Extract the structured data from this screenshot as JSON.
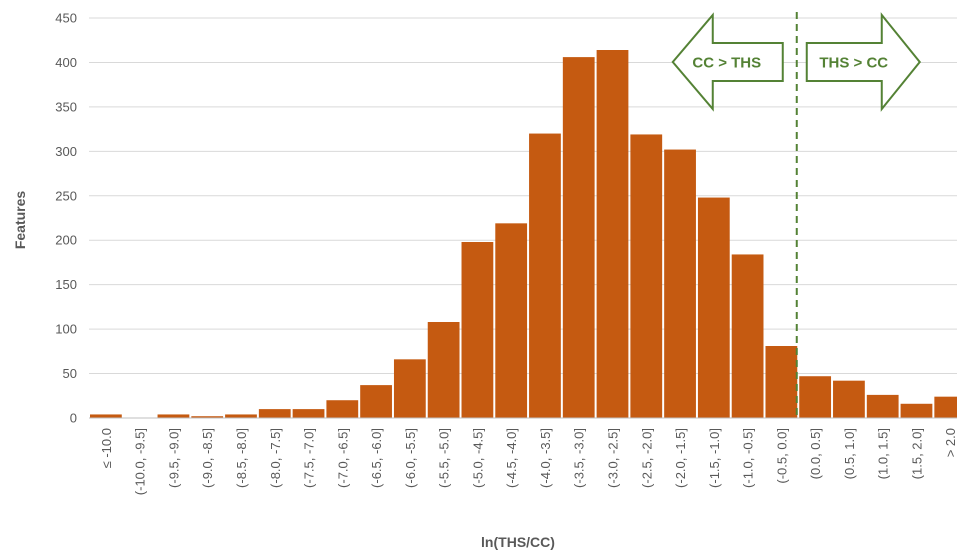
{
  "chart_data": {
    "type": "bar",
    "xlabel": "ln(THS/CC)",
    "ylabel": "Features",
    "ylim": [
      0,
      450
    ],
    "yticks": [
      0,
      50,
      100,
      150,
      200,
      250,
      300,
      350,
      400,
      450
    ],
    "grid": true,
    "legend": "none",
    "categories": [
      "≤ -10.0",
      "(-10.0, -9.5]",
      "(-9.5, -9.0]",
      "(-9.0, -8.5]",
      "(-8.5, -8.0]",
      "(-8.0, -7.5]",
      "(-7.5, -7.0]",
      "(-7.0, -6.5]",
      "(-6.5, -6.0]",
      "(-6.0, -5.5]",
      "(-5.5, -5.0]",
      "(-5.0, -4.5]",
      "(-4.5, -4.0]",
      "(-4.0, -3.5]",
      "(-3.5, -3.0]",
      "(-3.0, -2.5]",
      "(-2.5, -2.0]",
      "(-2.0, -1.5]",
      "(-1.5, -1.0]",
      "(-1.0, -0.5]",
      "(-0.5, 0.0]",
      "(0.0, 0.5]",
      "(0.5, 1.0]",
      "(1.0, 1.5]",
      "(1.5, 2.0]",
      "> 2.0"
    ],
    "values": [
      4,
      0,
      4,
      2,
      4,
      10,
      10,
      20,
      37,
      66,
      108,
      198,
      219,
      320,
      406,
      414,
      319,
      302,
      248,
      184,
      81,
      47,
      42,
      26,
      16,
      24
    ],
    "bar_color": "#C55A11",
    "reference_line": {
      "x_category": "(-0.5, 0.0]",
      "style": "dashed",
      "color": "#548235"
    },
    "annotations": [
      {
        "text": "CC > THS",
        "direction": "left",
        "color": "#548235"
      },
      {
        "text": "THS > CC",
        "direction": "right",
        "color": "#548235"
      }
    ]
  }
}
